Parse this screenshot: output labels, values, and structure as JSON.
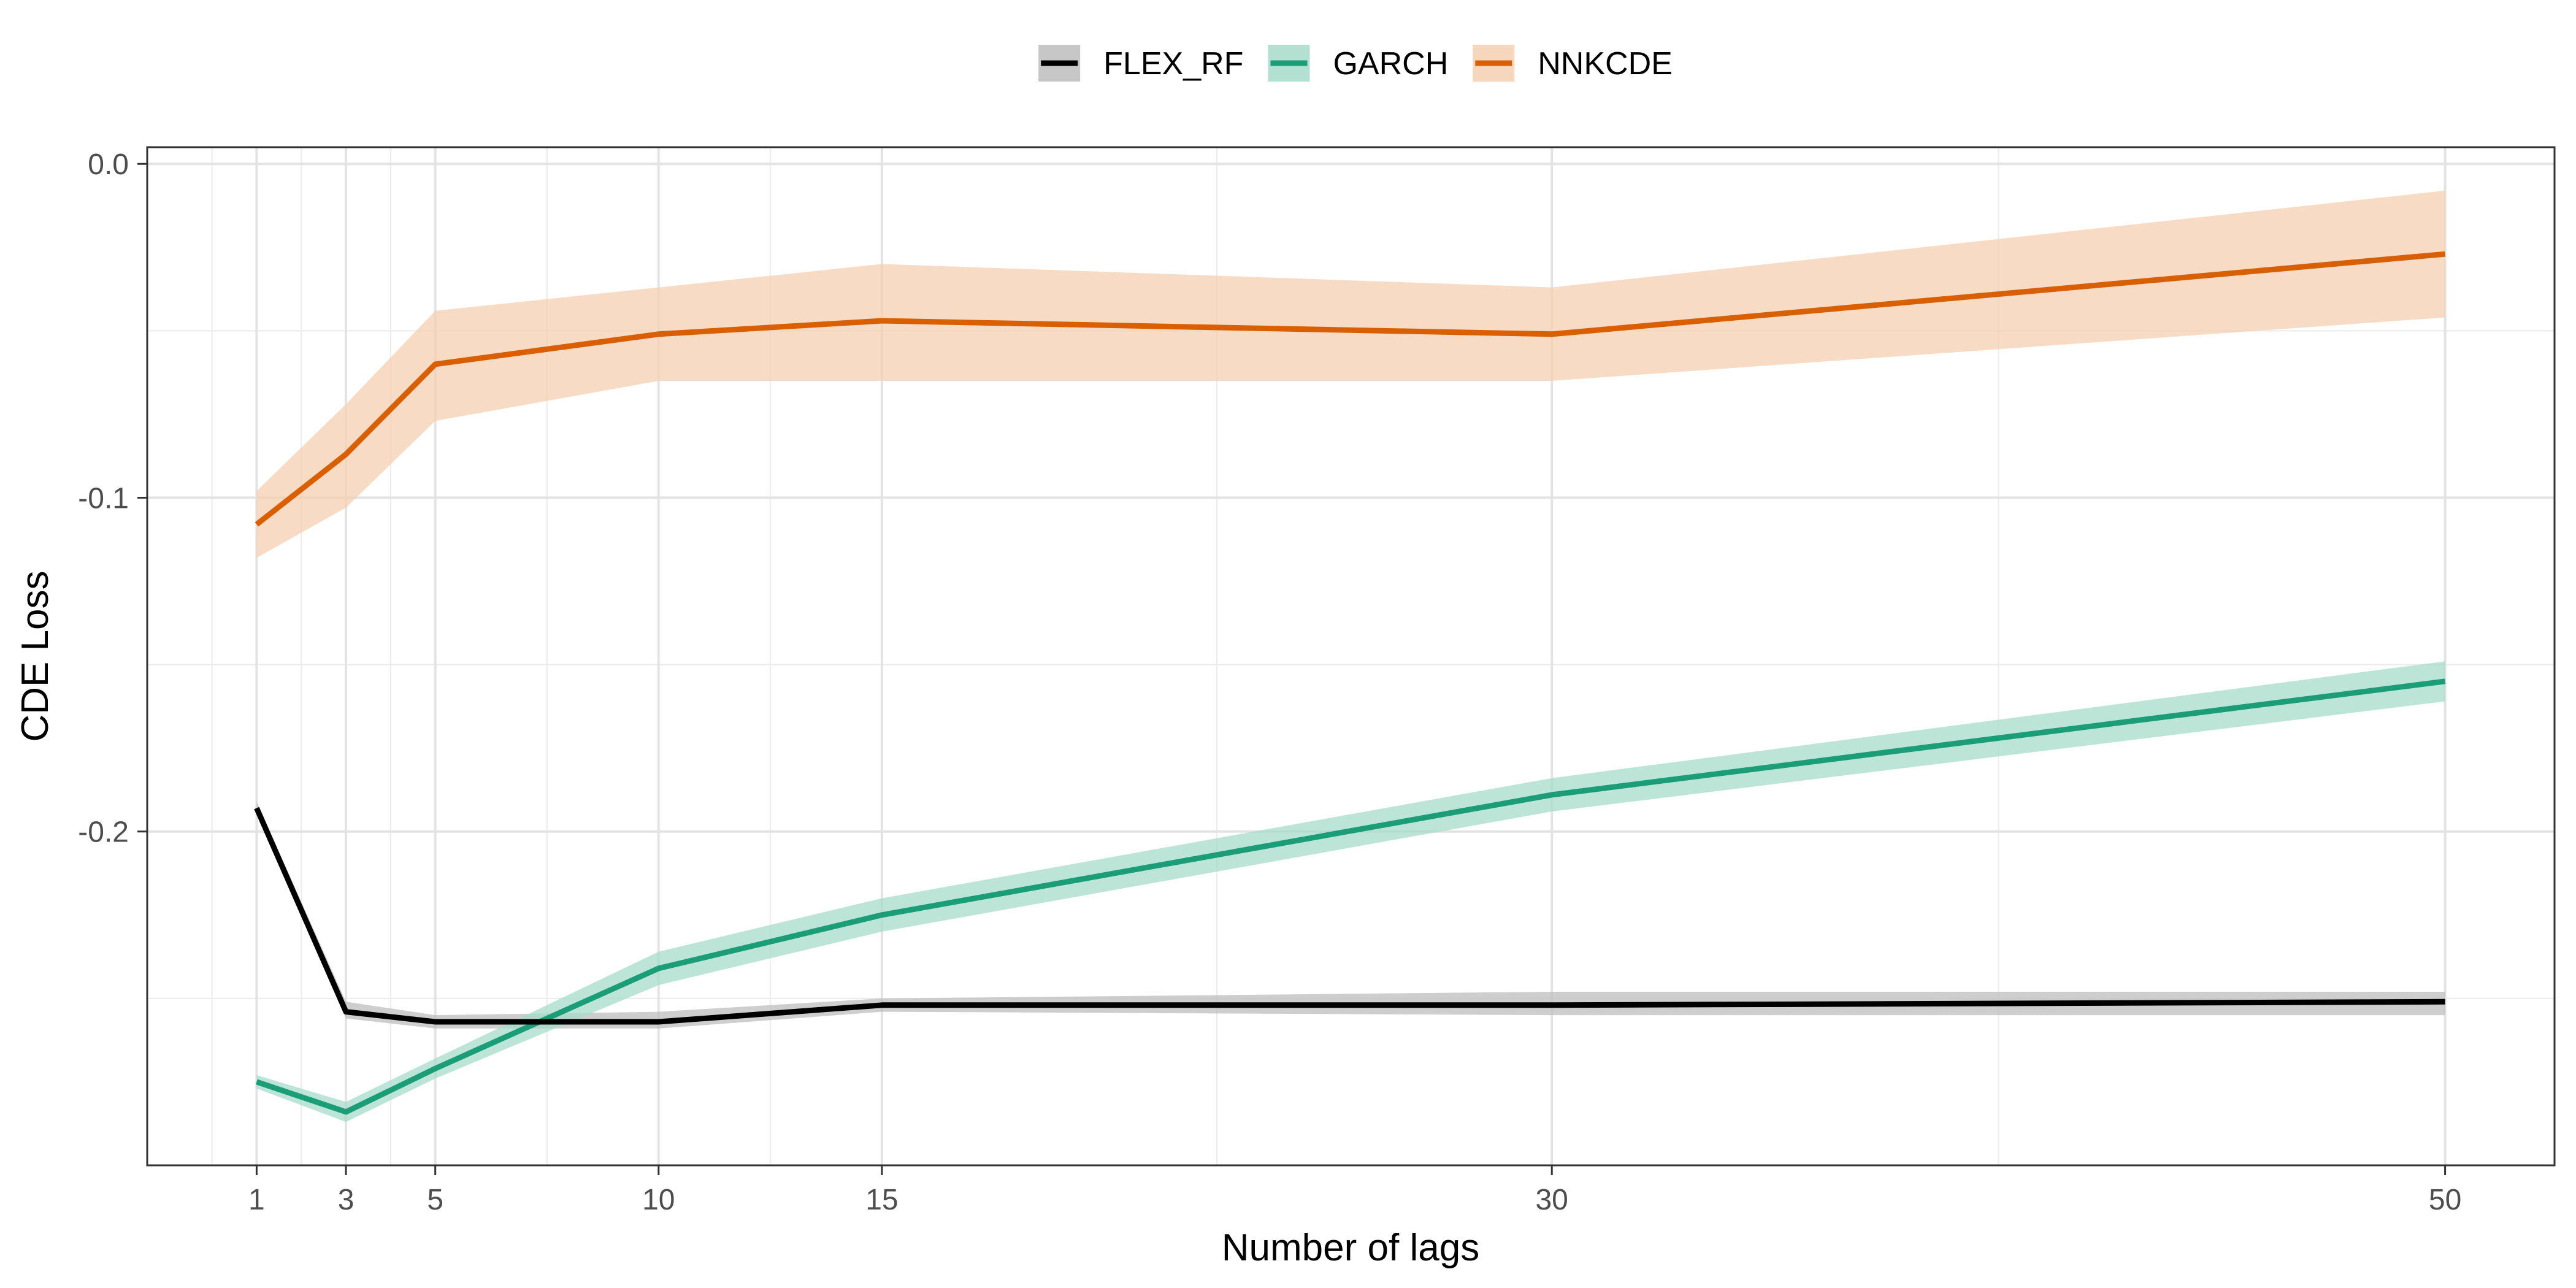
{
  "chart_data": {
    "type": "line",
    "xlabel": "Number of lags",
    "ylabel": "CDE Loss",
    "x": [
      1,
      3,
      5,
      10,
      15,
      30,
      50
    ],
    "xlim": [
      -1.45,
      52.45
    ],
    "ylim": [
      -0.3,
      0.005
    ],
    "x_ticks": [
      1,
      3,
      5,
      10,
      15,
      30,
      50
    ],
    "x_tick_labels": [
      "1",
      "3",
      "5",
      "10",
      "15",
      "30",
      "50"
    ],
    "y_ticks": [
      0.0,
      -0.1,
      -0.2
    ],
    "y_tick_labels": [
      "0.0",
      "-0.1",
      "-0.2"
    ],
    "grid": true,
    "legend_position": "top",
    "series": [
      {
        "name": "FLEX_RF",
        "color": "#000000",
        "band_color": "#bdbdbd",
        "values": [
          -0.193,
          -0.254,
          -0.257,
          -0.257,
          -0.252,
          -0.252,
          -0.251
        ],
        "lower": [
          -0.195,
          -0.256,
          -0.259,
          -0.259,
          -0.254,
          -0.255,
          -0.255
        ],
        "upper": [
          -0.191,
          -0.251,
          -0.255,
          -0.254,
          -0.25,
          -0.248,
          -0.248
        ]
      },
      {
        "name": "GARCH",
        "color": "#1b9e77",
        "band_color": "#a6dbc9",
        "values": [
          -0.275,
          -0.284,
          -0.271,
          -0.241,
          -0.225,
          -0.189,
          -0.155
        ],
        "lower": [
          -0.277,
          -0.287,
          -0.274,
          -0.246,
          -0.23,
          -0.194,
          -0.161
        ],
        "upper": [
          -0.273,
          -0.281,
          -0.268,
          -0.236,
          -0.22,
          -0.184,
          -0.149
        ]
      },
      {
        "name": "NNKCDE",
        "color": "#d95f02",
        "band_color": "#f5cfb0",
        "values": [
          -0.108,
          -0.087,
          -0.06,
          -0.051,
          -0.047,
          -0.051,
          -0.027
        ],
        "lower": [
          -0.118,
          -0.103,
          -0.077,
          -0.065,
          -0.065,
          -0.065,
          -0.046
        ],
        "upper": [
          -0.098,
          -0.072,
          -0.044,
          -0.037,
          -0.03,
          -0.037,
          -0.008
        ]
      }
    ]
  }
}
